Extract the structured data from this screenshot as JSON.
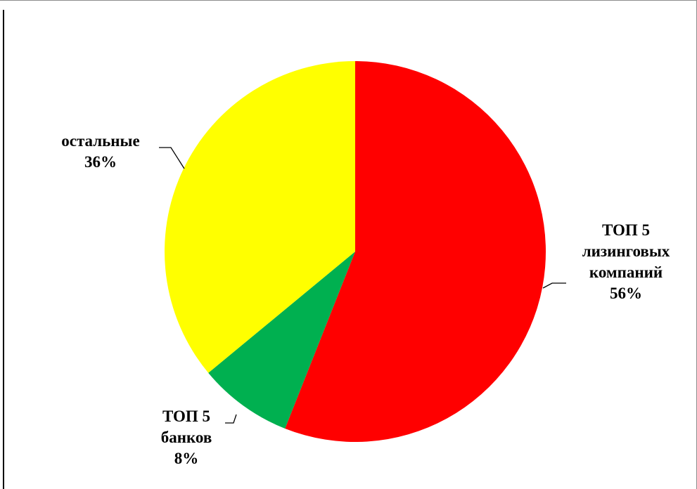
{
  "chart_data": {
    "type": "pie",
    "start_angle_deg": 0,
    "direction": "clockwise",
    "slices": [
      {
        "name_lines": [
          "ТОП 5",
          "лизинговых",
          "компаний"
        ],
        "value": 56,
        "percent_label": "56%",
        "color": "#ff0000"
      },
      {
        "name_lines": [
          "ТОП 5",
          "банков"
        ],
        "value": 8,
        "percent_label": "8%",
        "color": "#00b050"
      },
      {
        "name_lines": [
          "остальные"
        ],
        "value": 36,
        "percent_label": "36%",
        "color": "#ffff00"
      }
    ]
  }
}
